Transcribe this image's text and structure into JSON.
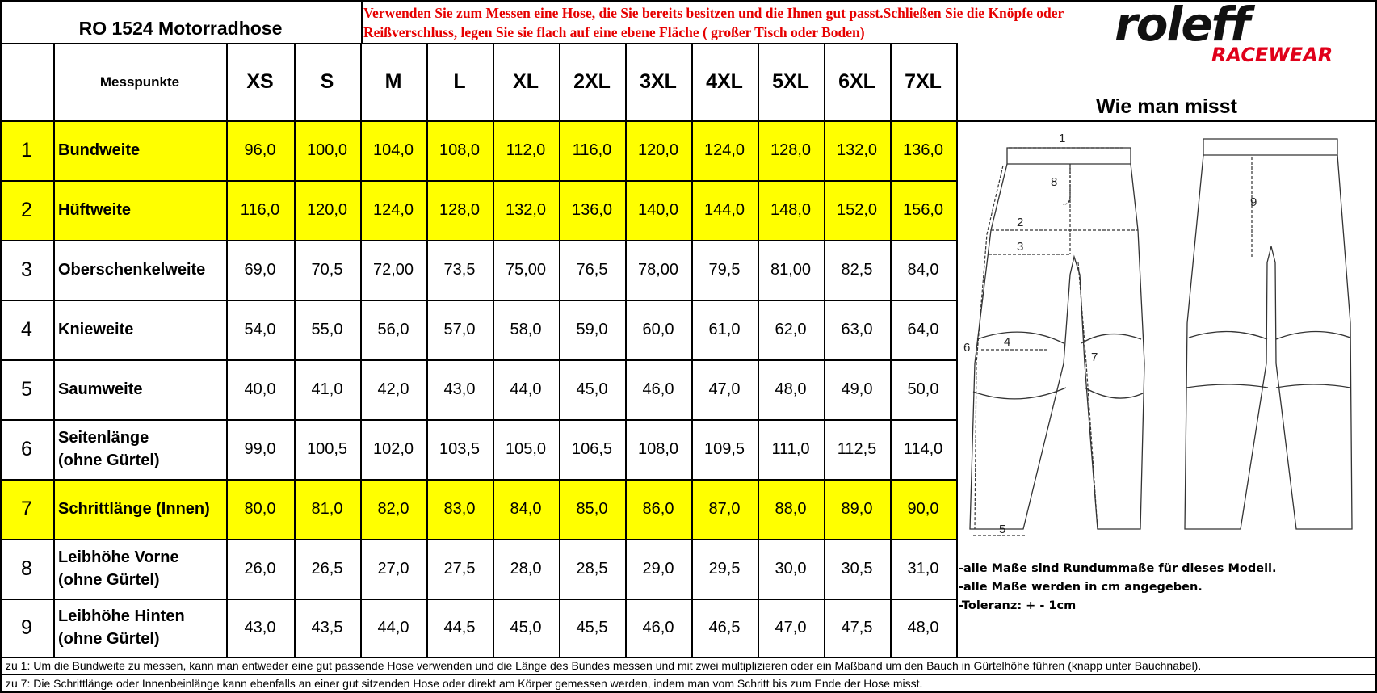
{
  "title": "RO 1524 Motorradhose",
  "instruction": "Verwenden Sie zum Messen eine Hose, die Sie bereits besitzen und die Ihnen gut passt.Schließen Sie die Knöpfe oder Reißverschluss, legen Sie sie flach auf eine ebene Fläche ( großer Tisch oder Boden)",
  "brand": {
    "name": "roleff",
    "sub": "RACEWEAR",
    "name_color": "#111111",
    "sub_color": "#e0001a"
  },
  "header_label": "Messpunkte",
  "sizes": [
    "XS",
    "S",
    "M",
    "L",
    "XL",
    "2XL",
    "3XL",
    "4XL",
    "5XL",
    "6XL",
    "7XL"
  ],
  "highlight_color": "#ffff00",
  "rows": [
    {
      "num": "1",
      "label": "Bundweite",
      "highlight": true,
      "values": [
        "96,0",
        "100,0",
        "104,0",
        "108,0",
        "112,0",
        "116,0",
        "120,0",
        "124,0",
        "128,0",
        "132,0",
        "136,0"
      ]
    },
    {
      "num": "2",
      "label": "Hüftweite",
      "highlight": true,
      "values": [
        "116,0",
        "120,0",
        "124,0",
        "128,0",
        "132,0",
        "136,0",
        "140,0",
        "144,0",
        "148,0",
        "152,0",
        "156,0"
      ]
    },
    {
      "num": "3",
      "label": "Oberschenkelweite",
      "highlight": false,
      "values": [
        "69,0",
        "70,5",
        "72,00",
        "73,5",
        "75,00",
        "76,5",
        "78,00",
        "79,5",
        "81,00",
        "82,5",
        "84,0"
      ]
    },
    {
      "num": "4",
      "label": "Knieweite",
      "highlight": false,
      "values": [
        "54,0",
        "55,0",
        "56,0",
        "57,0",
        "58,0",
        "59,0",
        "60,0",
        "61,0",
        "62,0",
        "63,0",
        "64,0"
      ]
    },
    {
      "num": "5",
      "label": "Saumweite",
      "highlight": false,
      "values": [
        "40,0",
        "41,0",
        "42,0",
        "43,0",
        "44,0",
        "45,0",
        "46,0",
        "47,0",
        "48,0",
        "49,0",
        "50,0"
      ]
    },
    {
      "num": "6",
      "label": "Seitenlänge\n(ohne Gürtel)",
      "highlight": false,
      "values": [
        "99,0",
        "100,5",
        "102,0",
        "103,5",
        "105,0",
        "106,5",
        "108,0",
        "109,5",
        "111,0",
        "112,5",
        "114,0"
      ]
    },
    {
      "num": "7",
      "label": "Schrittlänge (Innen)",
      "highlight": true,
      "values": [
        "80,0",
        "81,0",
        "82,0",
        "83,0",
        "84,0",
        "85,0",
        "86,0",
        "87,0",
        "88,0",
        "89,0",
        "90,0"
      ]
    },
    {
      "num": "8",
      "label": "Leibhöhe Vorne\n(ohne Gürtel)",
      "highlight": false,
      "values": [
        "26,0",
        "26,5",
        "27,0",
        "27,5",
        "28,0",
        "28,5",
        "29,0",
        "29,5",
        "30,0",
        "30,5",
        "31,0"
      ]
    },
    {
      "num": "9",
      "label": "Leibhöhe Hinten\n(ohne Gürtel)",
      "highlight": false,
      "values": [
        "43,0",
        "43,5",
        "44,0",
        "44,5",
        "45,0",
        "45,5",
        "46,0",
        "46,5",
        "47,0",
        "47,5",
        "48,0"
      ]
    }
  ],
  "how_to_measure": "Wie man misst",
  "diagram_labels": [
    "1",
    "2",
    "3",
    "4",
    "5",
    "6",
    "7",
    "8",
    "9"
  ],
  "notes": [
    "-alle Maße sind Rundummaße für dieses Modell.",
    "-alle Maße werden in cm angegeben.",
    "-Toleranz: + -  1cm"
  ],
  "footnotes": [
    "zu 1: Um die Bundweite zu messen, kann man entweder eine gut passende Hose verwenden und die Länge des Bundes messen und mit zwei multiplizieren oder ein Maßband um den Bauch in Gürtelhöhe führen (knapp unter Bauchnabel).",
    "zu 7: Die Schrittlänge oder Innenbeinlänge kann ebenfalls an einer gut sitzenden Hose oder direkt am Körper gemessen werden, indem man vom Schritt bis zum Ende der Hose misst."
  ]
}
